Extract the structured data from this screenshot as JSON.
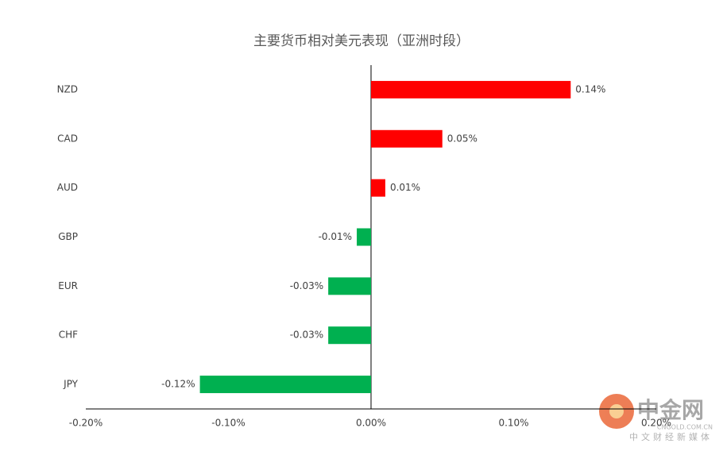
{
  "chart_data": {
    "type": "bar",
    "orientation": "horizontal",
    "title": "主要货币相对美元表现（亚洲时段）",
    "categories": [
      "NZD",
      "CAD",
      "AUD",
      "GBP",
      "EUR",
      "CHF",
      "JPY"
    ],
    "values": [
      0.14,
      0.05,
      0.01,
      -0.01,
      -0.03,
      -0.03,
      -0.12
    ],
    "value_labels": [
      "0.14%",
      "0.05%",
      "0.01%",
      "-0.01%",
      "-0.03%",
      "-0.03%",
      "-0.12%"
    ],
    "colors": [
      "#ff0000",
      "#ff0000",
      "#ff0000",
      "#00b050",
      "#00b050",
      "#00b050",
      "#00b050"
    ],
    "xlim": [
      -0.2,
      0.2
    ],
    "xticks": [
      {
        "value": -0.2,
        "label": "-0.20%"
      },
      {
        "value": -0.1,
        "label": "-0.10%"
      },
      {
        "value": 0,
        "label": "0.00%"
      },
      {
        "value": 0.1,
        "label": "0.10%"
      },
      {
        "value": 0.2,
        "label": "0.20%"
      }
    ],
    "grid": false
  },
  "watermark": {
    "name": "中金网",
    "url": "CNGOLD.COM.CN",
    "slogan": "中文财经新媒体"
  }
}
